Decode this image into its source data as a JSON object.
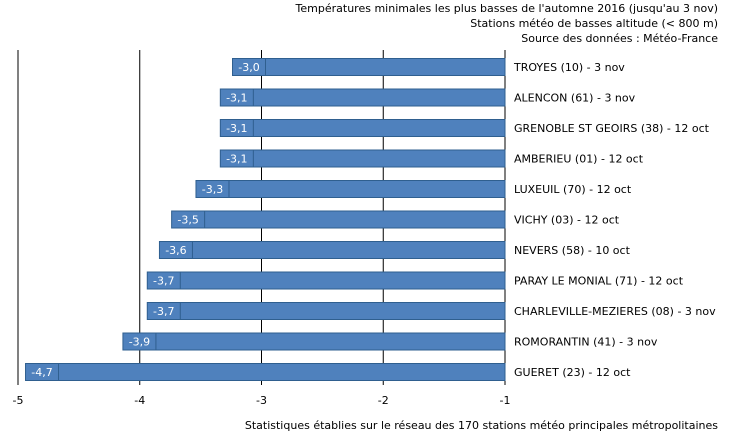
{
  "header": {
    "title": "Températures minimales les plus basses de l'automne 2016 (jusqu'au 3 nov)",
    "subtitle": "Stations météo de basses altitude (< 800 m)",
    "source": "Source des données : Météo-France"
  },
  "footer": {
    "note": "Statistiques établies sur le réseau des 170 stations météo principales métropolitaines"
  },
  "chart_data": {
    "type": "bar",
    "orientation": "horizontal",
    "title": "Températures minimales les plus basses de l'automne 2016 (jusqu'au 3 nov)",
    "xlabel": "",
    "ylabel": "",
    "xlim": [
      -5,
      -1
    ],
    "xticks": [
      "-5",
      "-4",
      "-3",
      "-2",
      "-1"
    ],
    "grid": "vertical",
    "bar_color": "#4f81bd",
    "label_bg_color": "#4f81bd",
    "categories": [
      "TROYES (10) - 3 nov",
      "ALENCON (61) - 3 nov",
      "GRENOBLE ST GEOIRS (38) - 12 oct",
      "AMBERIEU (01) - 12 oct",
      "LUXEUIL (70) - 12 oct",
      "VICHY (03) - 12 oct",
      "NEVERS (58) - 10 oct",
      "PARAY LE MONIAL (71) - 12 oct",
      "CHARLEVILLE-MEZIERES (08) - 3 nov",
      "ROMORANTIN (41) - 3 nov",
      "GUERET (23) - 12 oct"
    ],
    "values": [
      -3.0,
      -3.1,
      -3.1,
      -3.1,
      -3.3,
      -3.5,
      -3.6,
      -3.7,
      -3.7,
      -3.9,
      -4.7
    ],
    "value_labels": [
      "-3,0",
      "-3,1",
      "-3,1",
      "-3,1",
      "-3,3",
      "-3,5",
      "-3,6",
      "-3,7",
      "-3,7",
      "-3,9",
      "-4,7"
    ]
  }
}
